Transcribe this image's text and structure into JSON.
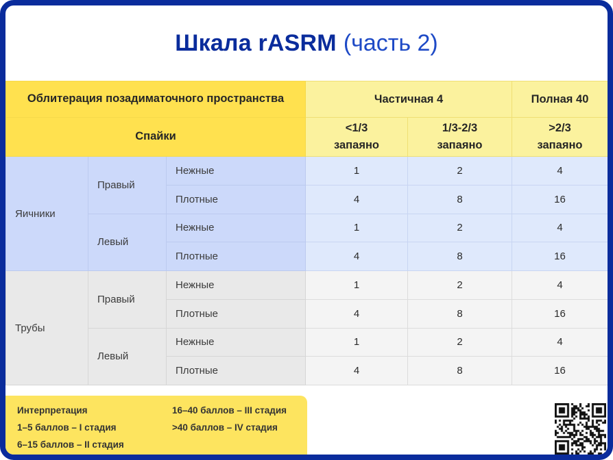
{
  "page": {
    "title_bold": "Шкала rASRM",
    "title_light": "(часть 2)"
  },
  "table": {
    "header": {
      "obliteration": "Облитерация позадиматочного пространства",
      "partial": "Частичная 4",
      "complete": "Полная 40",
      "adhesions": "Спайки",
      "cols": [
        {
          "line1": "<1/3",
          "line2": "запаяно"
        },
        {
          "line1": "1/3-2/3",
          "line2": "запаяно"
        },
        {
          "line1": ">2/3",
          "line2": "запаяно"
        }
      ]
    },
    "sections": [
      {
        "organ": "Яичники",
        "sides": [
          {
            "side": "Правый",
            "rows": [
              {
                "type": "Нежные",
                "values": [
                  "1",
                  "2",
                  "4"
                ]
              },
              {
                "type": "Плотные",
                "values": [
                  "4",
                  "8",
                  "16"
                ]
              }
            ]
          },
          {
            "side": "Левый",
            "rows": [
              {
                "type": "Нежные",
                "values": [
                  "1",
                  "2",
                  "4"
                ]
              },
              {
                "type": "Плотные",
                "values": [
                  "4",
                  "8",
                  "16"
                ]
              }
            ]
          }
        ]
      },
      {
        "organ": "Трубы",
        "sides": [
          {
            "side": "Правый",
            "rows": [
              {
                "type": "Нежные",
                "values": [
                  "1",
                  "2",
                  "4"
                ]
              },
              {
                "type": "Плотные",
                "values": [
                  "4",
                  "8",
                  "16"
                ]
              }
            ]
          },
          {
            "side": "Левый",
            "rows": [
              {
                "type": "Нежные",
                "values": [
                  "1",
                  "2",
                  "4"
                ]
              },
              {
                "type": "Плотные",
                "values": [
                  "4",
                  "8",
                  "16"
                ]
              }
            ]
          }
        ]
      }
    ]
  },
  "interpretation": {
    "title": "Интерпретация",
    "left": [
      "1–5 баллов – I стадия",
      "6–15 баллов – II стадия"
    ],
    "right": [
      "16–40 баллов – III стадия",
      ">40 баллов – IV стадия"
    ]
  },
  "colors": {
    "frame": "#0a2c9c",
    "bright_yellow": "#ffe14f",
    "pale_yellow": "#fbf29e",
    "interp_yellow": "#fde45f",
    "blue_label": "#ccd9fa",
    "blue_data": "#dfe9fc",
    "gray_label": "#e9e9e9",
    "gray_data": "#f4f4f4"
  }
}
